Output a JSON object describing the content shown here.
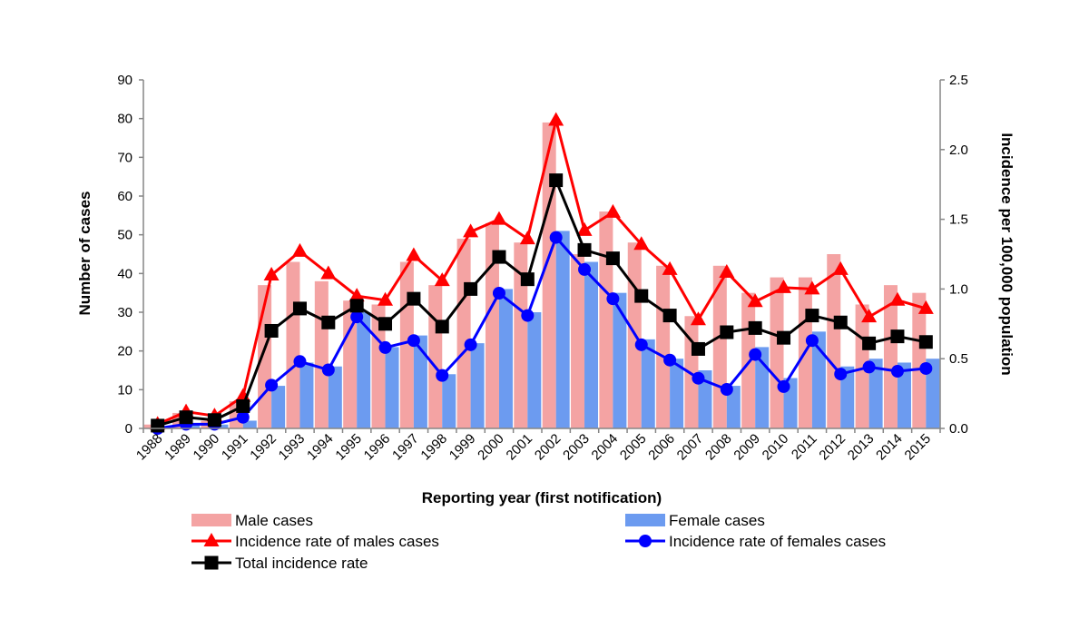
{
  "chart_data": {
    "type": "bar+line",
    "categories": [
      "1988",
      "1989",
      "1990",
      "1991",
      "1992",
      "1993",
      "1994",
      "1995",
      "1996",
      "1997",
      "1998",
      "1999",
      "2000",
      "2001",
      "2002",
      "2003",
      "2004",
      "2005",
      "2006",
      "2007",
      "2008",
      "2009",
      "2010",
      "2011",
      "2012",
      "2013",
      "2014",
      "2015"
    ],
    "bar_series": [
      {
        "name": "Male cases",
        "axis": "left",
        "color": "#f4a3a3",
        "values": [
          1,
          4,
          2,
          7,
          37,
          43,
          38,
          33,
          32,
          43,
          37,
          49,
          53,
          48,
          79,
          45,
          56,
          48,
          42,
          29,
          42,
          35,
          39,
          39,
          45,
          32,
          37,
          35
        ]
      },
      {
        "name": "Female cases",
        "axis": "left",
        "color": "#6c9bf0",
        "values": [
          0,
          1,
          1,
          2,
          11,
          17,
          16,
          30,
          21,
          24,
          14,
          22,
          36,
          30,
          51,
          43,
          35,
          23,
          18,
          15,
          11,
          21,
          13,
          25,
          16,
          18,
          17,
          18
        ]
      }
    ],
    "line_series": [
      {
        "name": "Incidence rate of males cases",
        "axis": "right",
        "color": "#ff0000",
        "marker": "triangle",
        "values": [
          0.03,
          0.12,
          0.09,
          0.23,
          1.1,
          1.27,
          1.11,
          0.95,
          0.92,
          1.24,
          1.06,
          1.41,
          1.5,
          1.36,
          2.21,
          1.42,
          1.55,
          1.32,
          1.14,
          0.78,
          1.12,
          0.91,
          1.01,
          1.0,
          1.14,
          0.8,
          0.92,
          0.86
        ]
      },
      {
        "name": "Incidence rate of females cases",
        "axis": "right",
        "color": "#0000ff",
        "marker": "circle",
        "values": [
          0.0,
          0.03,
          0.03,
          0.08,
          0.31,
          0.48,
          0.42,
          0.8,
          0.58,
          0.63,
          0.38,
          0.6,
          0.97,
          0.81,
          1.37,
          1.14,
          0.93,
          0.6,
          0.49,
          0.36,
          0.28,
          0.53,
          0.3,
          0.63,
          0.39,
          0.44,
          0.41,
          0.43
        ]
      },
      {
        "name": "Total incidence rate",
        "axis": "right",
        "color": "#000000",
        "marker": "square",
        "values": [
          0.02,
          0.08,
          0.06,
          0.16,
          0.7,
          0.86,
          0.76,
          0.88,
          0.75,
          0.93,
          0.73,
          1.0,
          1.23,
          1.07,
          1.78,
          1.28,
          1.22,
          0.95,
          0.81,
          0.57,
          0.69,
          0.72,
          0.65,
          0.81,
          0.76,
          0.61,
          0.66,
          0.62
        ]
      }
    ],
    "title": "",
    "xlabel": "Reporting year (first notification)",
    "ylabel": "Number of cases",
    "y2label": "Incidence per 100,000  population",
    "ylim": [
      0,
      90
    ],
    "yticks": [
      "0",
      "10",
      "20",
      "30",
      "40",
      "50",
      "60",
      "70",
      "80",
      "90"
    ],
    "y2lim": [
      0,
      2.5
    ],
    "y2ticks": [
      "0.0",
      "0.5",
      "1.0",
      "1.5",
      "2.0",
      "2.5"
    ],
    "grid": false,
    "legend_position": "bottom"
  }
}
